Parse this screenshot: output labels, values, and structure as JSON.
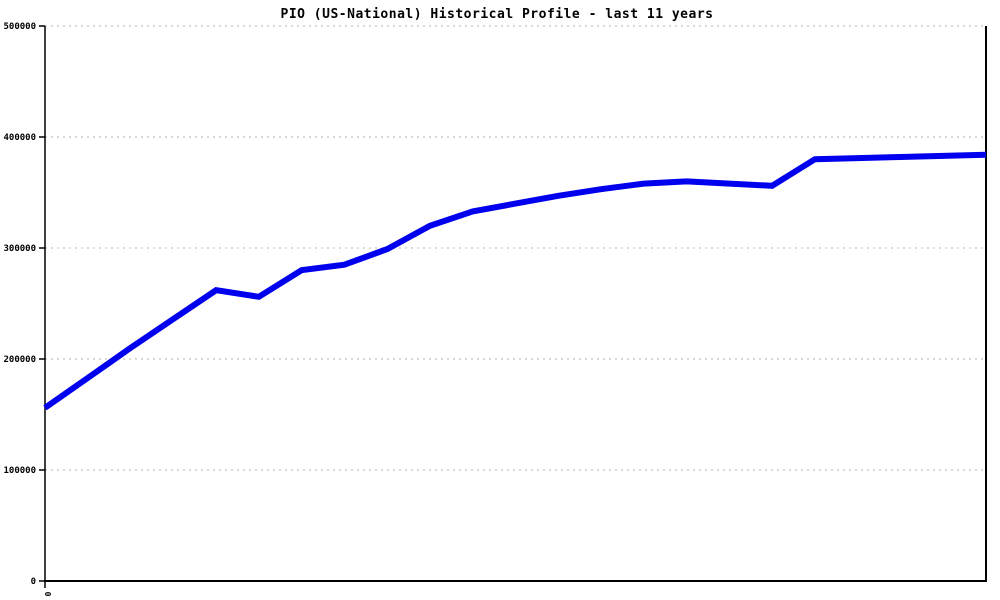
{
  "chart": {
    "title": "PIO (US-National) Historical Profile - last 11 years",
    "line_color": "#0000ee",
    "grid_color": "#b3b3b3",
    "axis_color": "#000000",
    "background_color": "#ffffff"
  },
  "chart_data": {
    "type": "line",
    "title": "PIO (US-National) Historical Profile - last 11 years",
    "xlabel": "",
    "ylabel": "",
    "x": [
      0,
      0.5,
      1,
      1.5,
      2,
      2.5,
      3,
      3.5,
      4,
      4.5,
      5,
      5.5,
      6,
      6.5,
      7,
      7.5,
      8,
      8.5,
      9,
      9.5,
      10,
      10.5,
      11
    ],
    "values": [
      156000,
      183000,
      210000,
      236000,
      262000,
      256000,
      280000,
      285000,
      299000,
      320000,
      333000,
      340000,
      347000,
      353000,
      358000,
      360000,
      358000,
      356000,
      380000,
      381000,
      382000,
      383000,
      384000
    ],
    "series_label": "PIO (US-National)",
    "xlim": [
      0,
      11
    ],
    "ylim": [
      0,
      500000
    ],
    "yticks": [
      0,
      100000,
      200000,
      300000,
      400000,
      500000
    ],
    "ytick_labels": [
      "0",
      "100000",
      "200000",
      "300000",
      "400000",
      "500000"
    ],
    "xticks": [
      0
    ],
    "xtick_labels": [
      "0"
    ],
    "grid": "horizontal-dotted",
    "legend_position": "none"
  }
}
